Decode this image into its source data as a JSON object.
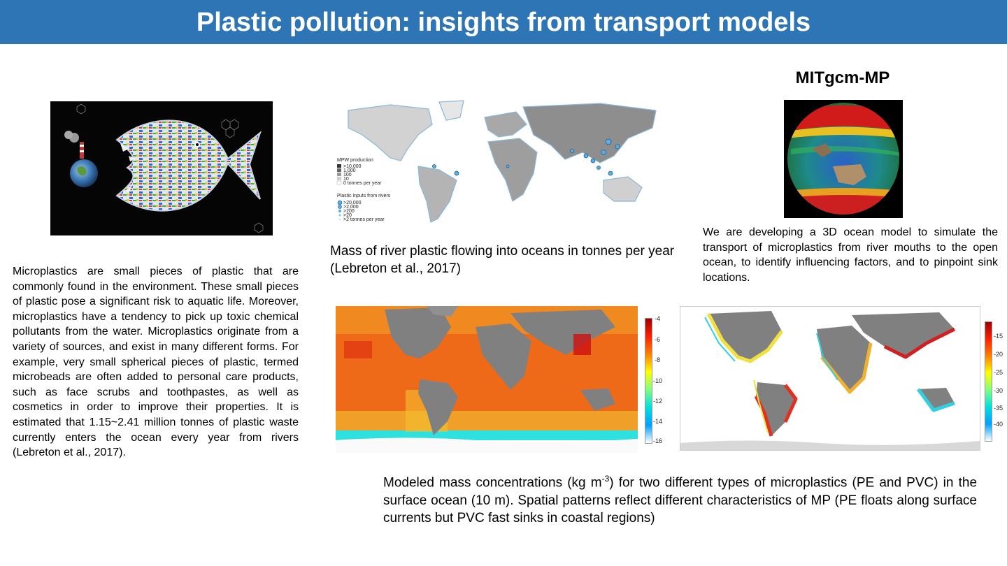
{
  "title": "Plastic pollution: insights from transport models",
  "left": {
    "paragraph": "Microplastics are small pieces of plastic that are commonly found in the environment. These small pieces of plastic pose a significant risk to aquatic life. Moreover, microplastics have a tendency to pick up toxic chemical pollutants from the water. Microplastics originate from a variety of sources, and exist in many different forms. For example, very small spherical pieces of plastic, termed microbeads are often added to personal care products, such as face scrubs and toothpastes, as well as cosmetics in order to improve their properties.   It is estimated that 1.15~2.41 million tonnes of plastic waste currently enters the ocean every year from rivers (Lebreton et al., 2017)."
  },
  "river_map": {
    "caption": "Mass of river plastic flowing into oceans in tonnes per year (Lebreton et al., 2017)",
    "legend": {
      "mpw_title": "MPW production",
      "mpw_items": [
        ">10,000",
        "1,000",
        "100",
        "10",
        "0 tonnes per year"
      ],
      "rivers_title": "Plastic inputs from rivers",
      "river_items": [
        ">20,000",
        ">2,000",
        ">200",
        ">20",
        ">2 tonnes per year"
      ]
    }
  },
  "model": {
    "name": "MITgcm-MP",
    "description": "We are developing a 3D ocean model to simulate the transport of microplastics from river mouths to the open ocean, to identify influencing factors, and to pinpoint sink locations."
  },
  "pe_map": {
    "colorbar_ticks": [
      "-4",
      "-6",
      "-8",
      "-10",
      "-12",
      "-14",
      "-16"
    ]
  },
  "pvc_map": {
    "colorbar_ticks": [
      "-15",
      "-20",
      "-25",
      "-30",
      "-35",
      "-40"
    ]
  },
  "bottom_caption": {
    "before_sup": "Modeled mass concentrations (kg m",
    "sup": "-3",
    "after_sup": ") for two different types of microplastics (PE and PVC) in the surface ocean (10 m). Spatial patterns reflect different characteristics of MP (PE floats along surface currents but PVC fast sinks in coastal regions)"
  },
  "colors": {
    "banner": "#2e75b6",
    "land": "#808080"
  }
}
